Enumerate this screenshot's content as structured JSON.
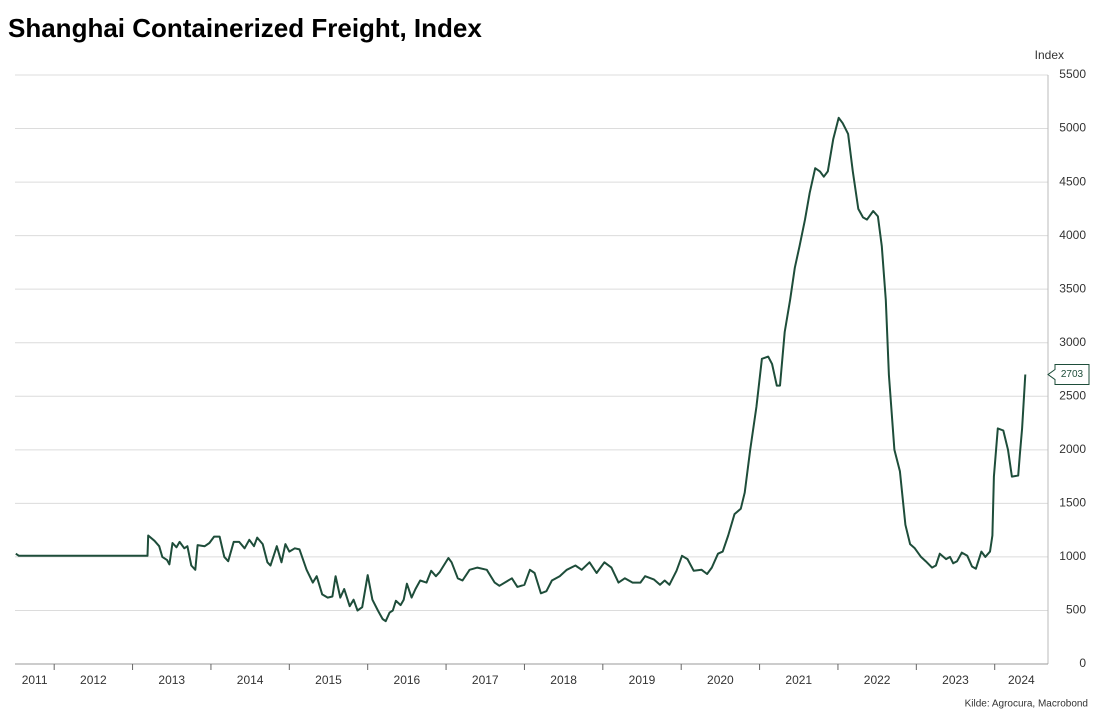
{
  "chart_data": {
    "type": "line",
    "title": "Shanghai Containerized Freight, Index",
    "y_label": "Index",
    "source": "Kilde: Agrocura, Macrobond",
    "color": "#1e4d3a",
    "grid": true,
    "y_axis_side": "right",
    "xlim": [
      2011.5,
      2024.68
    ],
    "xticks": [
      2011,
      2012,
      2013,
      2014,
      2015,
      2016,
      2017,
      2018,
      2019,
      2020,
      2021,
      2022,
      2023,
      2024
    ],
    "ylim": [
      0,
      5500
    ],
    "yticks": [
      0,
      500,
      1000,
      1500,
      2000,
      2500,
      3000,
      3500,
      4000,
      4500,
      5000,
      5500
    ],
    "x": [
      2011.51,
      2011.55,
      2013.19,
      2013.2,
      2013.28,
      2013.34,
      2013.38,
      2013.44,
      2013.47,
      2013.51,
      2013.56,
      2013.6,
      2013.66,
      2013.7,
      2013.75,
      2013.8,
      2013.83,
      2013.92,
      2013.98,
      2014.04,
      2014.11,
      2014.17,
      2014.22,
      2014.29,
      2014.36,
      2014.43,
      2014.49,
      2014.55,
      2014.59,
      2014.66,
      2014.72,
      2014.76,
      2014.84,
      2014.9,
      2014.95,
      2015.0,
      2015.07,
      2015.13,
      2015.22,
      2015.3,
      2015.35,
      2015.42,
      2015.49,
      2015.55,
      2015.59,
      2015.65,
      2015.7,
      2015.77,
      2015.82,
      2015.87,
      2015.93,
      2016.0,
      2016.06,
      2016.13,
      2016.19,
      2016.23,
      2016.28,
      2016.32,
      2016.36,
      2016.42,
      2016.46,
      2016.5,
      2016.56,
      2016.61,
      2016.67,
      2016.75,
      2016.81,
      2016.87,
      2016.92,
      2017.03,
      2017.07,
      2017.15,
      2017.21,
      2017.3,
      2017.4,
      2017.52,
      2017.62,
      2017.68,
      2017.84,
      2017.91,
      2018.0,
      2018.07,
      2018.13,
      2018.21,
      2018.28,
      2018.35,
      2018.45,
      2018.54,
      2018.65,
      2018.73,
      2018.83,
      2018.92,
      2019.02,
      2019.11,
      2019.2,
      2019.28,
      2019.38,
      2019.48,
      2019.54,
      2019.65,
      2019.73,
      2019.79,
      2019.85,
      2019.94,
      2020.01,
      2020.08,
      2020.16,
      2020.26,
      2020.33,
      2020.39,
      2020.47,
      2020.53,
      2020.6,
      2020.68,
      2020.76,
      2020.81,
      2020.88,
      2020.96,
      2021.03,
      2021.11,
      2021.16,
      2021.22,
      2021.26,
      2021.32,
      2021.39,
      2021.45,
      2021.51,
      2021.58,
      2021.64,
      2021.71,
      2021.77,
      2021.82,
      2021.87,
      2021.94,
      2022.01,
      2022.06,
      2022.13,
      2022.19,
      2022.26,
      2022.32,
      2022.37,
      2022.45,
      2022.51,
      2022.56,
      2022.61,
      2022.65,
      2022.72,
      2022.79,
      2022.86,
      2022.92,
      2022.98,
      2023.06,
      2023.12,
      2023.2,
      2023.25,
      2023.3,
      2023.38,
      2023.43,
      2023.47,
      2023.52,
      2023.58,
      2023.65,
      2023.71,
      2023.76,
      2023.83,
      2023.88,
      2023.94,
      2023.97,
      2023.99,
      2024.04,
      2024.11,
      2024.17,
      2024.22,
      2024.3,
      2024.32,
      2024.35,
      2024.39
    ],
    "values": [
      1030,
      1010,
      1010,
      1200,
      1150,
      1100,
      1000,
      970,
      930,
      1130,
      1090,
      1140,
      1080,
      1100,
      920,
      880,
      1110,
      1100,
      1130,
      1190,
      1190,
      1000,
      960,
      1140,
      1140,
      1080,
      1160,
      1100,
      1180,
      1120,
      950,
      920,
      1100,
      950,
      1120,
      1050,
      1080,
      1070,
      880,
      760,
      820,
      650,
      620,
      630,
      820,
      620,
      700,
      540,
      600,
      500,
      530,
      830,
      600,
      500,
      420,
      400,
      480,
      500,
      590,
      550,
      600,
      750,
      620,
      700,
      780,
      760,
      870,
      820,
      860,
      990,
      950,
      800,
      780,
      880,
      900,
      880,
      760,
      730,
      800,
      720,
      740,
      880,
      850,
      660,
      680,
      780,
      820,
      880,
      920,
      880,
      950,
      850,
      950,
      900,
      760,
      800,
      760,
      760,
      820,
      790,
      740,
      780,
      740,
      870,
      1010,
      980,
      870,
      880,
      840,
      900,
      1030,
      1050,
      1200,
      1400,
      1450,
      1600,
      2000,
      2400,
      2850,
      2870,
      2800,
      2600,
      2600,
      3100,
      3400,
      3700,
      3900,
      4150,
      4400,
      4630,
      4600,
      4550,
      4600,
      4900,
      5100,
      5050,
      4950,
      4600,
      4250,
      4170,
      4150,
      4230,
      4180,
      3900,
      3400,
      2700,
      2000,
      1800,
      1300,
      1120,
      1080,
      1000,
      960,
      900,
      920,
      1030,
      980,
      1000,
      940,
      960,
      1040,
      1010,
      910,
      890,
      1050,
      1000,
      1050,
      1200,
      1750,
      2200,
      2180,
      2000,
      1750,
      1760,
      1950,
      2200,
      2703
    ]
  }
}
